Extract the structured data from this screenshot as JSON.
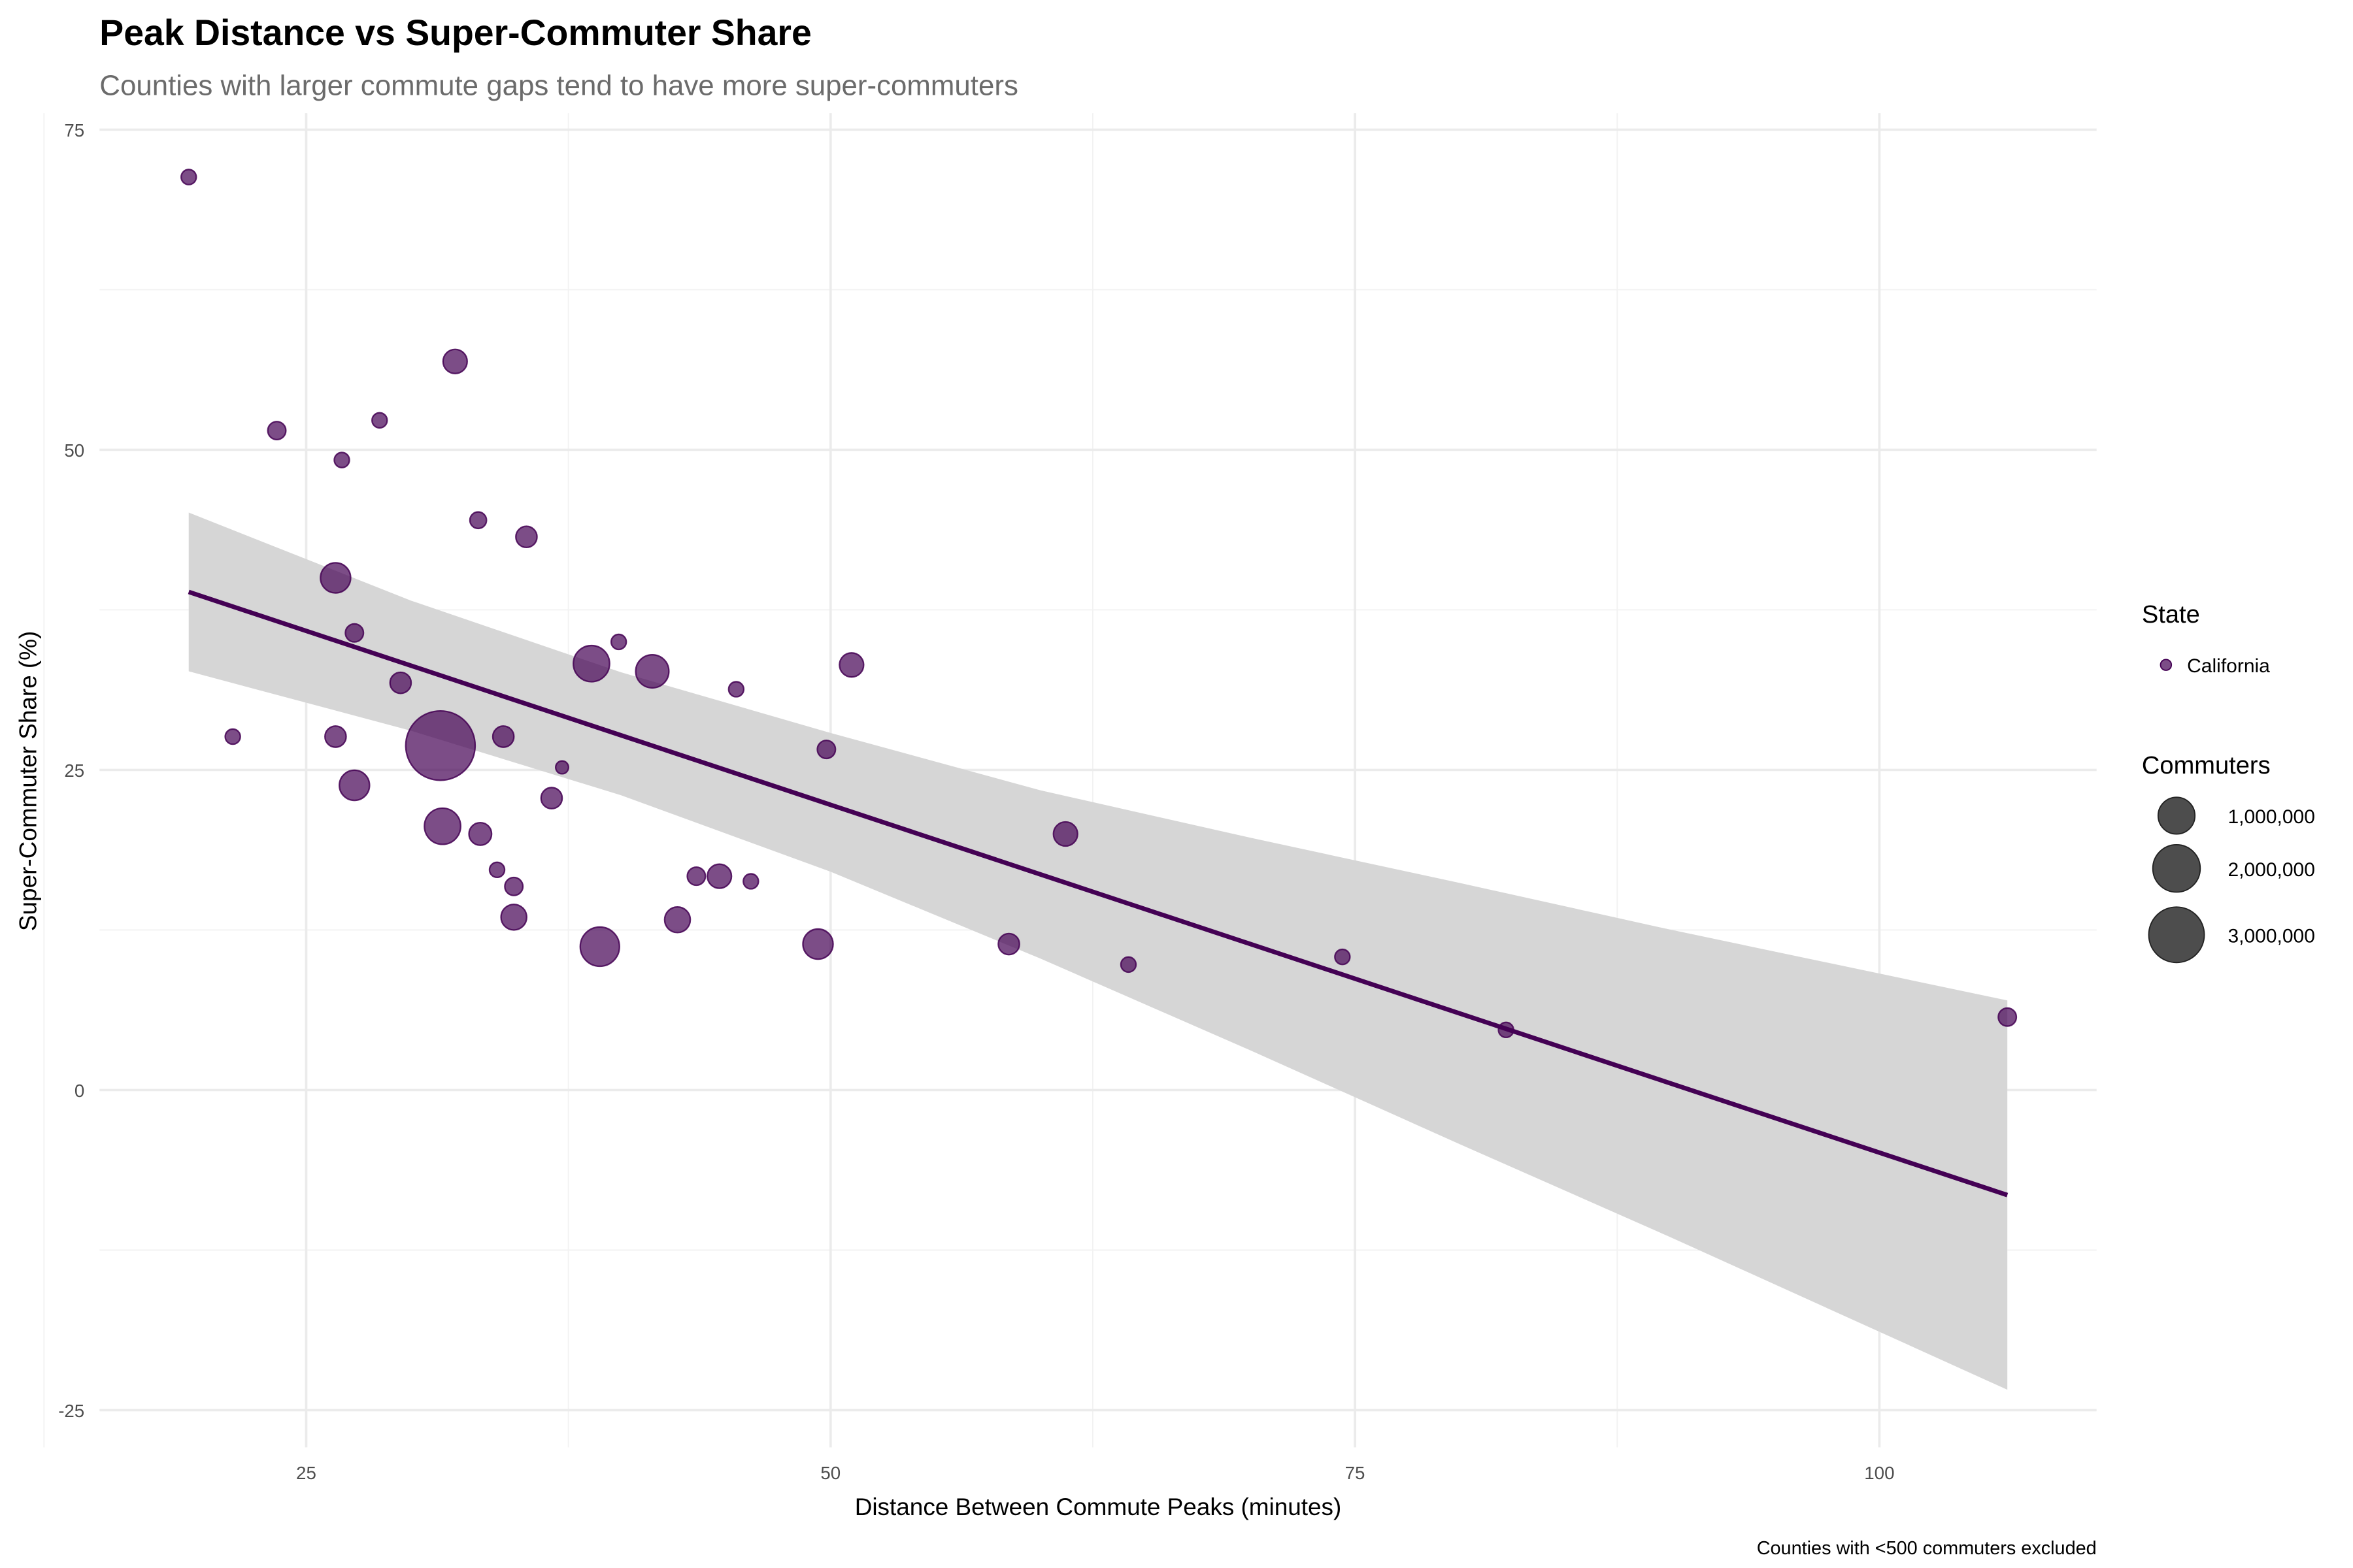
{
  "chart_data": {
    "type": "scatter",
    "title": "Peak Distance vs Super-Commuter Share",
    "subtitle": "Counties with larger commute gaps tend to have more super-commuters",
    "xlabel": "Distance Between Commute Peaks (minutes)",
    "ylabel": "Super-Commuter Share (%)",
    "caption": "Counties with <500 commuters excluded",
    "xlim": [
      15.2,
      110.3
    ],
    "ylim": [
      -27.5,
      76
    ],
    "x_ticks": [
      25,
      50,
      75,
      100
    ],
    "x_tick_labels": [
      "25",
      "50",
      "75",
      "100"
    ],
    "y_ticks": [
      75,
      50,
      25,
      0,
      -25
    ],
    "y_tick_labels": [
      "75",
      "50",
      "25",
      "0",
      "-25"
    ],
    "grid": true,
    "legend_position": "right",
    "colors": {
      "point": "#440154",
      "trend_line": "#440154",
      "ribbon": "#d6d6d6",
      "legend_size_fill": "#4d4d4d"
    },
    "legend": {
      "color_title": "State",
      "color_entries": [
        "California"
      ],
      "size_title": "Commuters",
      "size_breaks": [
        1000000,
        2000000,
        3000000
      ],
      "size_labels": [
        "1,000,000",
        "2,000,000",
        "3,000,000"
      ]
    },
    "series": [
      {
        "name": "California",
        "points": [
          {
            "x": 19.4,
            "y": 71.3,
            "commuters": 14000
          },
          {
            "x": 32.1,
            "y": 56.9,
            "commuters": 221000
          },
          {
            "x": 23.6,
            "y": 51.5,
            "commuters": 55000
          },
          {
            "x": 28.5,
            "y": 52.3,
            "commuters": 14000
          },
          {
            "x": 26.7,
            "y": 49.2,
            "commuters": 14000
          },
          {
            "x": 33.2,
            "y": 44.5,
            "commuters": 31000
          },
          {
            "x": 35.5,
            "y": 43.2,
            "commuters": 125000
          },
          {
            "x": 26.4,
            "y": 40.0,
            "commuters": 498000
          },
          {
            "x": 27.3,
            "y": 35.7,
            "commuters": 55000
          },
          {
            "x": 39.9,
            "y": 35.0,
            "commuters": 14000
          },
          {
            "x": 38.6,
            "y": 33.3,
            "commuters": 886000
          },
          {
            "x": 41.5,
            "y": 32.7,
            "commuters": 678000
          },
          {
            "x": 51.0,
            "y": 33.2,
            "commuters": 221000
          },
          {
            "x": 29.5,
            "y": 31.8,
            "commuters": 125000
          },
          {
            "x": 45.5,
            "y": 31.3,
            "commuters": 14000
          },
          {
            "x": 21.5,
            "y": 27.6,
            "commuters": 14000
          },
          {
            "x": 26.4,
            "y": 27.6,
            "commuters": 125000
          },
          {
            "x": 31.4,
            "y": 26.9,
            "commuters": 5000000
          },
          {
            "x": 34.4,
            "y": 27.6,
            "commuters": 125000
          },
          {
            "x": 49.8,
            "y": 26.6,
            "commuters": 55000
          },
          {
            "x": 37.2,
            "y": 25.2,
            "commuters": 1000
          },
          {
            "x": 27.3,
            "y": 23.8,
            "commuters": 498000
          },
          {
            "x": 36.7,
            "y": 22.8,
            "commuters": 125000
          },
          {
            "x": 31.5,
            "y": 20.6,
            "commuters": 886000
          },
          {
            "x": 33.3,
            "y": 20.0,
            "commuters": 170000
          },
          {
            "x": 61.2,
            "y": 20.0,
            "commuters": 221000
          },
          {
            "x": 34.1,
            "y": 17.2,
            "commuters": 14000
          },
          {
            "x": 43.6,
            "y": 16.7,
            "commuters": 55000
          },
          {
            "x": 44.7,
            "y": 16.7,
            "commuters": 221000
          },
          {
            "x": 46.2,
            "y": 16.3,
            "commuters": 14000
          },
          {
            "x": 34.9,
            "y": 15.9,
            "commuters": 55000
          },
          {
            "x": 34.9,
            "y": 13.5,
            "commuters": 280000
          },
          {
            "x": 42.7,
            "y": 13.3,
            "commuters": 280000
          },
          {
            "x": 39.0,
            "y": 11.2,
            "commuters": 1120000
          },
          {
            "x": 49.4,
            "y": 11.4,
            "commuters": 498000
          },
          {
            "x": 58.5,
            "y": 11.4,
            "commuters": 125000
          },
          {
            "x": 64.2,
            "y": 9.8,
            "commuters": 14000
          },
          {
            "x": 74.4,
            "y": 10.4,
            "commuters": 14000
          },
          {
            "x": 82.2,
            "y": 4.7,
            "commuters": 14000
          },
          {
            "x": 106.1,
            "y": 5.7,
            "commuters": 55000
          }
        ]
      }
    ],
    "trend_line": {
      "x": [
        19.4,
        106.1
      ],
      "y": [
        38.9,
        -8.2
      ]
    },
    "confidence_band": {
      "x": [
        19.4,
        30,
        40,
        50,
        60,
        70,
        80,
        90,
        106.1
      ],
      "lower": [
        32.7,
        28.06,
        23.03,
        17.05,
        10.27,
        3.11,
        -4.23,
        -11.46,
        -23.4
      ],
      "upper": [
        45.1,
        38.22,
        32.63,
        27.89,
        23.41,
        19.71,
        16.17,
        12.54,
        7.0
      ]
    }
  }
}
